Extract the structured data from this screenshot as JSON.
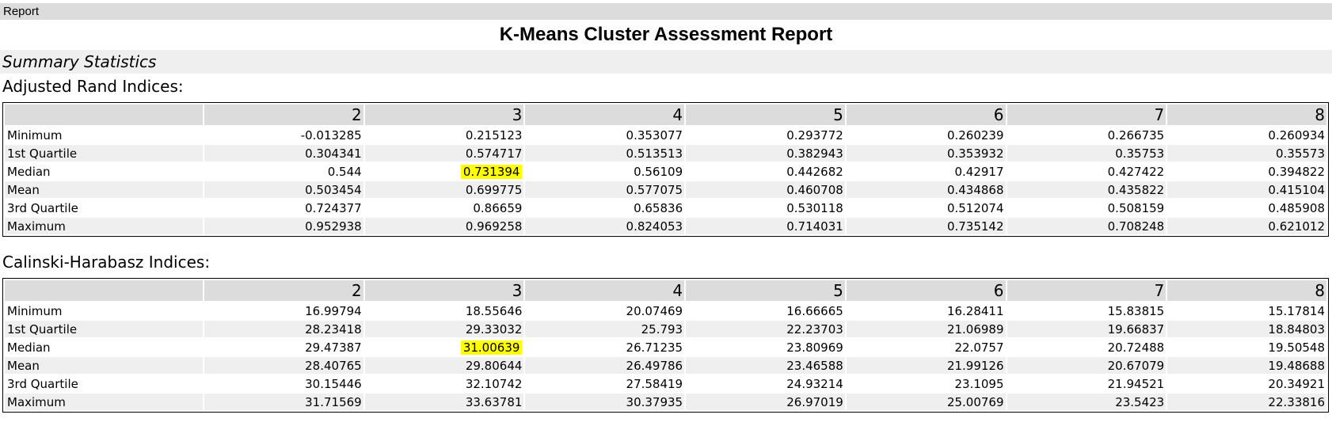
{
  "tab": {
    "label": "Report"
  },
  "report": {
    "title": "K-Means Cluster Assessment Report"
  },
  "section": {
    "title": "Summary Statistics"
  },
  "tables": [
    {
      "label": "Adjusted Rand Indices:",
      "columns": [
        "",
        "2",
        "3",
        "4",
        "5",
        "6",
        "7",
        "8"
      ],
      "rows": [
        {
          "name": "Minimum",
          "values": [
            "-0.013285",
            "0.215123",
            "0.353077",
            "0.293772",
            "0.260239",
            "0.266735",
            "0.260934"
          ]
        },
        {
          "name": "1st Quartile",
          "values": [
            "0.304341",
            "0.574717",
            "0.513513",
            "0.382943",
            "0.353932",
            "0.35753",
            "0.35573"
          ]
        },
        {
          "name": "Median",
          "values": [
            "0.544",
            "0.731394",
            "0.56109",
            "0.442682",
            "0.42917",
            "0.427422",
            "0.394822"
          ]
        },
        {
          "name": "Mean",
          "values": [
            "0.503454",
            "0.699775",
            "0.577075",
            "0.460708",
            "0.434868",
            "0.435822",
            "0.415104"
          ]
        },
        {
          "name": "3rd Quartile",
          "values": [
            "0.724377",
            "0.86659",
            "0.65836",
            "0.530118",
            "0.512074",
            "0.508159",
            "0.485908"
          ]
        },
        {
          "name": "Maximum",
          "values": [
            "0.952938",
            "0.969258",
            "0.824053",
            "0.714031",
            "0.735142",
            "0.708248",
            "0.621012"
          ]
        }
      ],
      "highlight": {
        "row": 2,
        "col": 1,
        "color": "#ffff00"
      }
    },
    {
      "label": "Calinski-Harabasz Indices:",
      "columns": [
        "",
        "2",
        "3",
        "4",
        "5",
        "6",
        "7",
        "8"
      ],
      "rows": [
        {
          "name": "Minimum",
          "values": [
            "16.99794",
            "18.55646",
            "20.07469",
            "16.66665",
            "16.28411",
            "15.83815",
            "15.17814"
          ]
        },
        {
          "name": "1st Quartile",
          "values": [
            "28.23418",
            "29.33032",
            "25.793",
            "22.23703",
            "21.06989",
            "19.66837",
            "18.84803"
          ]
        },
        {
          "name": "Median",
          "values": [
            "29.47387",
            "31.00639",
            "26.71235",
            "23.80969",
            "22.0757",
            "20.72488",
            "19.50548"
          ]
        },
        {
          "name": "Mean",
          "values": [
            "28.40765",
            "29.80644",
            "26.49786",
            "23.46588",
            "21.99126",
            "20.67079",
            "19.48688"
          ]
        },
        {
          "name": "3rd Quartile",
          "values": [
            "30.15446",
            "32.10742",
            "27.58419",
            "24.93214",
            "23.1095",
            "21.94521",
            "20.34921"
          ]
        },
        {
          "name": "Maximum",
          "values": [
            "31.71569",
            "33.63781",
            "30.37935",
            "26.97019",
            "25.00769",
            "23.5423",
            "22.33816"
          ]
        }
      ],
      "highlight": {
        "row": 2,
        "col": 1,
        "color": "#ffff00"
      }
    }
  ]
}
